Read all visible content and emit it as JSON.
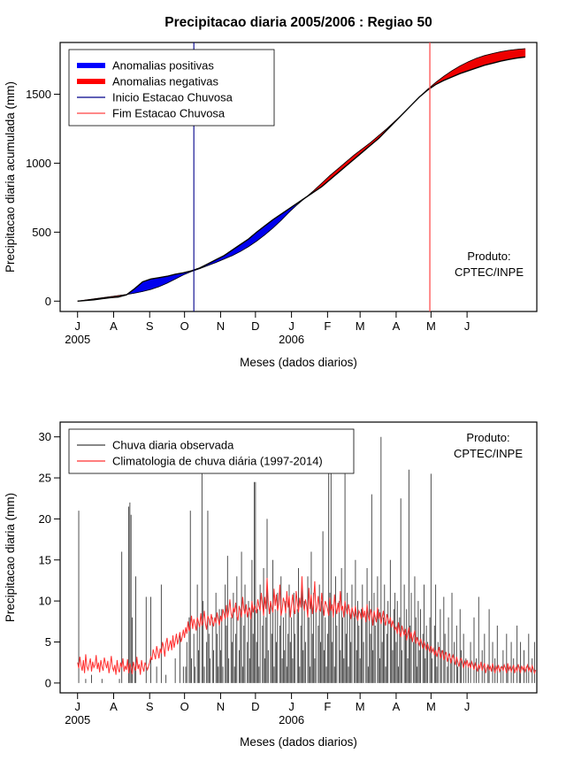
{
  "page_title": "Precipitacao diaria 2005/2006 : Regiao 50",
  "chart_data": [
    {
      "type": "area",
      "title": "Precipitacao diaria 2005/2006 : Regiao 50",
      "xlabel": "Meses (dados diarios)",
      "ylabel": "Precipitacao diaria acumulada (mm)",
      "x_tick_labels": [
        "J",
        "A",
        "S",
        "O",
        "N",
        "D",
        "J",
        "F",
        "M",
        "A",
        "M",
        "J"
      ],
      "x_tick_days": [
        0,
        31,
        62,
        92,
        123,
        153,
        184,
        215,
        243,
        274,
        304,
        335
      ],
      "year_labels": [
        {
          "text": "2005",
          "day": 0
        },
        {
          "text": "2006",
          "day": 184
        }
      ],
      "y_ticks": [
        0,
        500,
        1000,
        1500
      ],
      "xlim": [
        -15,
        395
      ],
      "ylim": [
        -75,
        1875
      ],
      "grid": false,
      "legend_position": "top-left",
      "legend": [
        {
          "label": "Anomalias positivas",
          "color": "#0000ff",
          "lw": 6
        },
        {
          "label": "Anomalias negativas",
          "color": "#ff0000",
          "lw": 6
        },
        {
          "label": "Inicio Estacao Chuvosa",
          "color": "#00008b",
          "lw": 1.3
        },
        {
          "label": "Fim Estacao Chuvosa",
          "color": "#ff4040",
          "lw": 1.3
        }
      ],
      "annotation": {
        "lines": [
          "Produto:",
          "CPTEC/INPE"
        ]
      },
      "season_start_day": 100,
      "season_end_day": 303,
      "colors": {
        "positive": "#0000ee",
        "negative": "#ee0000",
        "curve": "#000000",
        "start_line": "#00008b",
        "end_line": "#ff5050"
      },
      "x_step": 7,
      "series": [
        {
          "name": "Precipitacao acumulada observada",
          "values": [
            0,
            5,
            10,
            18,
            25,
            30,
            45,
            90,
            140,
            160,
            170,
            180,
            195,
            205,
            220,
            240,
            270,
            300,
            330,
            370,
            410,
            450,
            500,
            545,
            590,
            630,
            670,
            710,
            750,
            790,
            830,
            880,
            930,
            980,
            1030,
            1080,
            1130,
            1180,
            1240,
            1300,
            1360,
            1420,
            1480,
            1530,
            1570,
            1600,
            1625,
            1650,
            1670,
            1690,
            1710,
            1725,
            1740,
            1752,
            1762,
            1770
          ]
        },
        {
          "name": "Climatologia acumulada",
          "values": [
            0,
            8,
            16,
            24,
            32,
            40,
            48,
            58,
            70,
            85,
            105,
            130,
            160,
            190,
            215,
            235,
            258,
            280,
            305,
            330,
            360,
            395,
            435,
            480,
            530,
            585,
            645,
            700,
            750,
            800,
            855,
            910,
            960,
            1010,
            1060,
            1105,
            1150,
            1200,
            1250,
            1305,
            1360,
            1420,
            1480,
            1535,
            1585,
            1630,
            1670,
            1705,
            1735,
            1760,
            1780,
            1795,
            1808,
            1818,
            1825,
            1830
          ]
        }
      ]
    },
    {
      "type": "bar",
      "title": "",
      "xlabel": "Meses (dados diarios)",
      "ylabel": "Precipitacao diaria (mm)",
      "x_tick_labels": [
        "J",
        "A",
        "S",
        "O",
        "N",
        "D",
        "J",
        "F",
        "M",
        "A",
        "M",
        "J"
      ],
      "x_tick_days": [
        0,
        31,
        62,
        92,
        123,
        153,
        184,
        215,
        243,
        274,
        304,
        335
      ],
      "year_labels": [
        {
          "text": "2005",
          "day": 0
        },
        {
          "text": "2006",
          "day": 184
        }
      ],
      "y_ticks": [
        0,
        5,
        10,
        15,
        20,
        25,
        30
      ],
      "xlim": [
        -15,
        395
      ],
      "ylim": [
        -1.2,
        31.8
      ],
      "grid": false,
      "legend_position": "top-left",
      "legend": [
        {
          "label": "Chuva diaria observada",
          "color": "#404040",
          "lw": 1.3
        },
        {
          "label": "Climatologia de chuva diária (1997-2014)",
          "color": "#ff3030",
          "lw": 1.3
        }
      ],
      "annotation": {
        "lines": [
          "Produto:",
          "CPTEC/INPE"
        ]
      },
      "colors": {
        "bar": "#3c3c3c",
        "climatology": "#ff3030"
      },
      "series": [
        {
          "name": "Chuva diaria observada",
          "values": [
            0,
            21,
            0,
            0,
            0,
            0,
            0,
            0.5,
            0,
            0,
            0,
            0,
            1,
            0,
            0,
            0,
            0,
            0,
            0,
            0,
            0,
            0.5,
            0,
            0,
            0,
            0,
            0,
            0,
            0,
            0,
            0,
            0,
            0,
            0,
            0,
            0,
            0.5,
            0,
            16,
            0,
            0,
            0,
            0,
            0,
            21.5,
            22,
            20.5,
            8,
            0,
            2,
            13,
            0,
            0,
            0,
            0,
            0,
            0,
            0,
            0,
            10.5,
            0,
            0,
            0,
            10.5,
            0,
            0,
            0,
            0,
            2,
            0,
            0,
            0,
            12,
            0,
            0,
            0,
            1,
            0,
            0,
            0,
            0,
            0,
            0,
            0,
            3,
            0,
            0,
            0,
            6,
            0,
            0,
            2,
            0,
            2,
            5,
            0,
            8,
            21,
            3,
            0,
            6,
            2,
            0,
            12,
            4,
            7,
            0,
            25.5,
            10,
            2,
            0,
            5,
            21,
            6,
            3,
            0,
            8,
            4,
            0,
            11,
            6,
            2,
            9,
            4,
            9,
            2,
            0,
            12,
            7,
            15.5,
            3,
            0,
            8,
            5,
            11,
            2,
            6,
            13,
            0,
            4,
            9,
            16,
            2,
            7,
            12,
            0,
            5,
            10,
            3,
            8,
            15,
            6,
            24.5,
            24.5,
            5,
            9,
            2,
            12,
            0,
            7,
            14,
            3,
            8,
            20,
            4,
            0,
            10,
            6,
            15,
            2,
            9,
            5,
            11,
            0,
            7,
            13,
            3,
            8,
            4,
            10,
            2,
            6,
            12,
            5,
            8,
            3,
            11,
            6,
            0,
            9,
            14,
            2,
            7,
            12,
            4,
            10,
            5,
            0,
            13,
            8,
            2,
            16,
            6,
            11,
            3,
            9,
            0,
            7,
            12,
            5,
            10,
            18.5,
            4,
            8,
            2,
            6,
            30,
            11,
            28,
            5,
            9,
            2,
            13,
            7,
            0,
            10,
            4,
            14,
            8,
            3,
            25.5,
            6,
            11,
            2,
            9,
            5,
            12,
            0,
            8,
            15,
            4,
            10,
            7,
            3,
            9,
            12,
            5,
            0,
            8,
            14,
            2,
            10,
            6,
            23,
            4,
            11,
            7,
            0,
            13,
            9,
            3,
            30,
            5,
            8,
            12,
            2,
            6,
            10,
            0,
            15,
            7,
            4,
            9,
            11,
            5,
            10,
            2,
            8,
            22.5,
            4,
            0,
            12,
            6,
            9,
            3,
            26,
            7,
            11,
            0,
            5,
            13,
            8,
            2,
            10,
            4,
            9,
            0,
            6,
            12,
            3,
            7,
            5,
            0,
            8,
            25.5,
            3,
            0,
            7,
            12,
            2,
            5,
            0,
            9,
            4,
            0,
            10.5,
            6,
            0,
            2,
            8,
            0,
            3,
            11,
            0,
            5,
            0,
            7,
            2,
            0,
            9,
            4,
            0,
            6,
            0,
            3,
            0,
            2,
            0,
            5,
            0,
            0,
            8,
            0,
            3,
            0,
            10.5,
            0,
            0,
            4,
            0,
            6,
            0,
            0,
            2,
            9,
            0,
            0,
            5,
            0,
            3,
            0,
            7,
            0,
            0,
            2,
            0,
            4,
            0,
            0,
            6,
            2,
            0,
            0,
            5,
            0,
            3,
            0,
            0,
            7,
            0,
            2,
            5,
            0,
            0,
            4,
            0,
            2,
            0,
            6,
            0,
            0,
            3,
            0,
            5,
            0
          ]
        },
        {
          "name": "Climatologia de chuva diária (1997-2014)",
          "values": [
            2.5,
            1.8,
            3.2,
            2.1,
            1.5,
            2.8,
            1.2,
            3.5,
            2.0,
            1.6,
            2.3,
            3.0,
            1.4,
            2.6,
            1.9,
            2.2,
            3.4,
            1.7,
            2.5,
            1.3,
            2.8,
            2.0,
            1.5,
            3.1,
            2.4,
            1.8,
            2.7,
            1.2,
            2.1,
            3.3,
            1.9,
            1.5,
            2.2,
            1.0,
            2.8,
            1.7,
            1.3,
            2.5,
            1.9,
            3.0,
            1.4,
            2.1,
            1.6,
            2.9,
            1.2,
            2.4,
            1.8,
            1.1,
            2.6,
            2.0,
            1.5,
            3.2,
            1.7,
            2.3,
            1.0,
            2.8,
            1.9,
            1.4,
            2.5,
            2.1,
            1.6,
            2.0,
            2.5,
            3.2,
            2.8,
            4.1,
            3.5,
            2.9,
            4.5,
            3.8,
            3.0,
            4.2,
            3.6,
            5.0,
            4.4,
            3.2,
            4.8,
            5.5,
            3.9,
            4.6,
            5.2,
            4.0,
            5.8,
            4.3,
            5.1,
            6.0,
            4.7,
            5.4,
            6.2,
            5.0,
            5.6,
            6.5,
            5.5,
            6.8,
            6.0,
            7.5,
            6.3,
            7.0,
            8.2,
            6.6,
            7.8,
            7.2,
            6.4,
            8.0,
            7.4,
            6.8,
            8.5,
            7.0,
            7.6,
            8.8,
            7.2,
            6.5,
            8.2,
            7.8,
            7.0,
            8.4,
            7.5,
            6.9,
            8.0,
            7.3,
            8.6,
            7.7,
            7.0,
            8.2,
            7.5,
            9.0,
            8.4,
            7.8,
            9.5,
            8.0,
            8.8,
            10.2,
            8.5,
            7.9,
            9.2,
            8.6,
            9.8,
            8.2,
            7.6,
            9.4,
            8.8,
            8.0,
            10.5,
            9.0,
            8.4,
            9.6,
            8.0,
            8.8,
            9.2,
            7.8,
            10.0,
            8.6,
            9.4,
            9.0,
            8.5,
            10.2,
            9.4,
            8.8,
            11.0,
            9.6,
            8.2,
            10.5,
            9.0,
            12.8,
            9.8,
            8.4,
            10.0,
            9.2,
            8.6,
            11.5,
            9.4,
            10.8,
            8.8,
            9.6,
            12.0,
            8.2,
            9.0,
            10.4,
            9.8,
            8.5,
            11.2,
            9.2,
            10.6,
            8.0,
            9.5,
            10.8,
            9.0,
            8.4,
            11.2,
            9.8,
            8.6,
            10.4,
            9.2,
            13.0,
            9.6,
            8.8,
            10.2,
            9.4,
            8.0,
            11.6,
            9.0,
            10.8,
            8.4,
            9.8,
            12.4,
            8.6,
            9.2,
            10.6,
            9.0,
            8.8,
            11.0,
            9.4,
            8.2,
            10.0,
            9.6,
            9.0,
            8.2,
            10.4,
            8.8,
            9.6,
            8.0,
            10.8,
            9.2,
            8.4,
            9.8,
            8.6,
            11.2,
            8.8,
            9.4,
            8.0,
            10.0,
            9.0,
            8.4,
            9.6,
            8.8,
            7.8,
            9.2,
            8.6,
            8.0,
            9.4,
            8.2,
            7.6,
            8.8,
            8.5,
            7.8,
            9.2,
            8.0,
            8.8,
            7.4,
            9.6,
            8.2,
            7.6,
            9.0,
            8.4,
            7.0,
            8.8,
            8.0,
            7.4,
            9.2,
            7.8,
            8.6,
            7.2,
            8.0,
            8.8,
            7.6,
            7.0,
            8.4,
            7.8,
            7.2,
            8.0,
            6.8,
            7.6,
            7.0,
            6.5,
            6.8,
            6.0,
            7.4,
            6.2,
            5.6,
            7.0,
            6.4,
            5.8,
            6.6,
            5.2,
            6.0,
            6.8,
            5.4,
            6.2,
            5.0,
            5.8,
            6.4,
            4.8,
            5.6,
            5.0,
            4.6,
            5.4,
            4.8,
            4.2,
            5.0,
            4.6,
            4.0,
            4.8,
            4.2,
            3.8,
            4.5,
            3.8,
            4.2,
            3.4,
            4.0,
            3.2,
            3.8,
            4.4,
            3.0,
            3.6,
            4.0,
            2.8,
            3.4,
            3.8,
            2.6,
            3.2,
            3.6,
            2.4,
            3.0,
            3.4,
            2.8,
            2.2,
            3.2,
            2.6,
            2.0,
            2.8,
            3.0,
            2.4,
            1.8,
            2.6,
            2.2,
            2.8,
            2.0,
            2.4,
            1.8,
            2.6,
            2.2,
            1.6,
            2.4,
            2.0,
            1.4,
            2.2,
            1.8,
            2.6,
            1.5,
            2.0,
            2.4,
            1.2,
            1.8,
            2.2,
            1.6,
            2.0,
            1.4,
            2.4,
            1.8,
            1.2,
            2.0,
            1.6,
            2.2,
            1.4,
            1.8,
            2.0,
            1.5,
            2.2,
            1.8,
            1.2,
            2.4,
            1.6,
            2.0,
            1.4,
            1.8,
            2.2,
            1.2,
            1.9,
            1.5,
            2.3,
            1.7,
            1.3,
            2.1,
            1.6,
            2.0,
            1.4,
            1.8,
            2.2,
            1.5,
            1.9,
            1.3,
            2.1,
            1.7,
            1.2,
            1.6
          ]
        }
      ]
    }
  ]
}
